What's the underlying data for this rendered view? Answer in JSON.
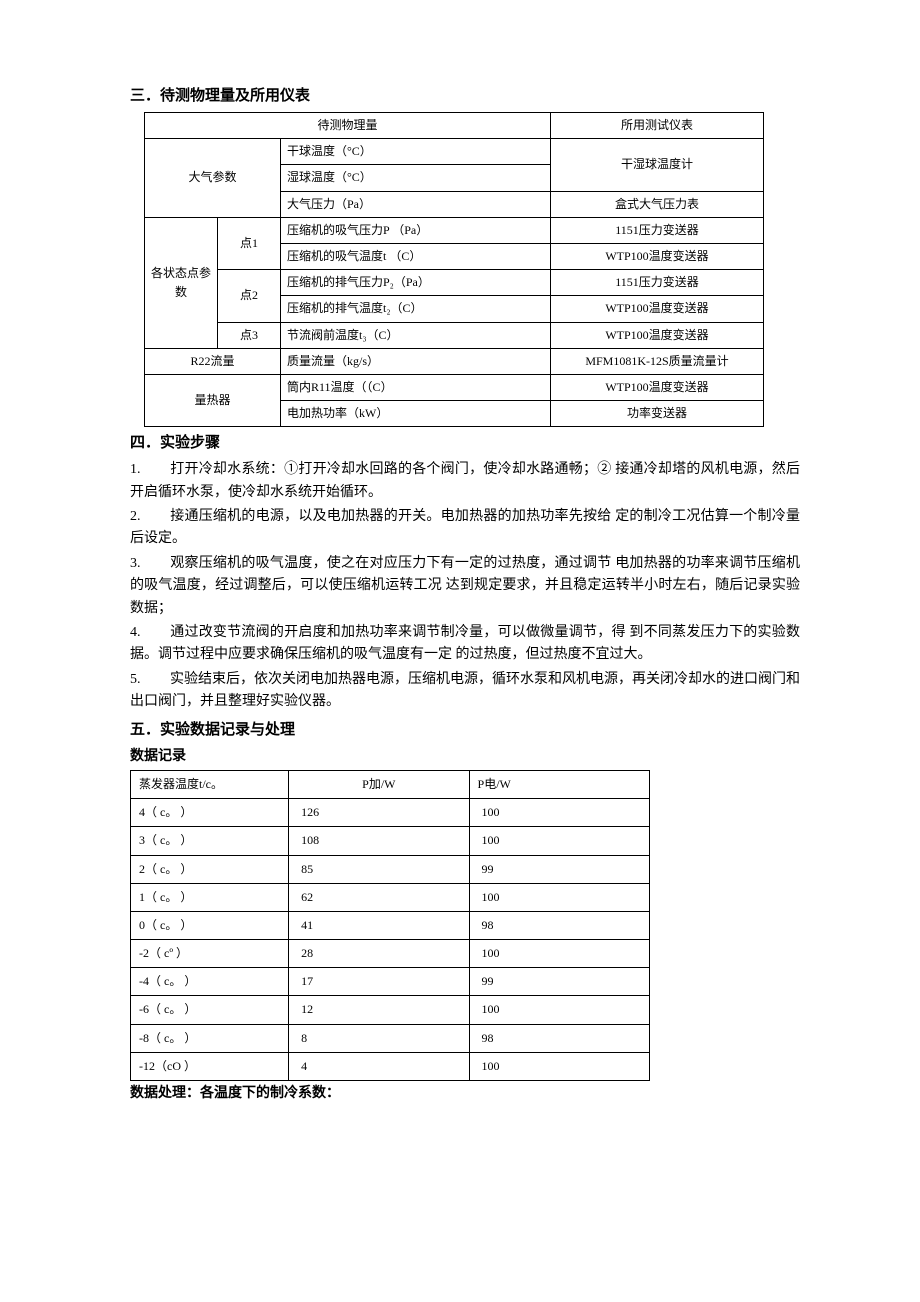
{
  "sec3": {
    "title": "三．待测物理量及所用仪表",
    "table": {
      "header_left": "待测物理量",
      "header_right": "所用测试仪表",
      "atmos": {
        "label": "大气参数",
        "rows": [
          {
            "q": "干球温度（°C）",
            "inst": "干湿球温度计",
            "span": 2
          },
          {
            "q": "湿球温度（°C）"
          },
          {
            "q": "大气压力（Pa）",
            "inst": "盒式大气压力表"
          }
        ]
      },
      "state": {
        "label": "各状态点参数",
        "points": [
          {
            "pt": "点1",
            "rows": [
              {
                "q": "压缩机的吸气压力P （Pa）",
                "inst": "1151压力变送器"
              },
              {
                "q": "压缩机的吸气温度t （C）",
                "inst": "WTP100温度变送器"
              }
            ]
          },
          {
            "pt": "点2",
            "rows": [
              {
                "q": "压缩机的排气压力P₂（Pa）",
                "inst": "1151压力变送器"
              },
              {
                "q": "压缩机的排气温度t₂（C）",
                "inst": "WTP100温度变送器"
              }
            ]
          },
          {
            "pt": "点3",
            "rows": [
              {
                "q": "节流阀前温度t₃（C）",
                "inst": "WTP100温度变送器"
              }
            ]
          }
        ]
      },
      "flow": {
        "label": "R22流量",
        "q": "质量流量（kg/s）",
        "inst": "MFM1081K-12S质量流量计"
      },
      "cal": {
        "label": "量热器",
        "rows": [
          {
            "q": "筒内R11温度（（C）",
            "inst": "WTP100温度变送器"
          },
          {
            "q": "电加热功率（kW）",
            "inst": "功率变送器"
          }
        ]
      }
    }
  },
  "sec4": {
    "title": "四．实验步骤",
    "steps": [
      "打开冷却水系统：①打开冷却水回路的各个阀门，使冷却水路通畅；② 接通冷却塔的风机电源，然后开启循环水泵，使冷却水系统开始循环。",
      "接通压缩机的电源，以及电加热器的开关。电加热器的加热功率先按给 定的制冷工况估算一个制冷量后设定。",
      "观察压缩机的吸气温度，使之在对应压力下有一定的过热度，通过调节 电加热器的功率来调节压缩机的吸气温度，经过调整后，可以使压缩机运转工况 达到规定要求，并且稳定运转半小时左右，随后记录实验数据；",
      "通过改变节流阀的开启度和加热功率来调节制冷量，可以做微量调节，得 到不同蒸发压力下的实验数据。调节过程中应要求确保压缩机的吸气温度有一定 的过热度，但过热度不宜过大。",
      "实验结束后，依次关闭电加热器电源，压缩机电源，循环水泵和风机电源，再关闭冷却水的进口阀门和出口阀门，并且整理好实验仪器。"
    ]
  },
  "sec5": {
    "title": "五．实验数据记录与处理",
    "subtitle": "数据记录",
    "table": {
      "headers": [
        "蒸发器温度t/c。",
        "P加/W",
        "P电/W"
      ],
      "rows": [
        [
          "4（ c。 ）",
          "126",
          "100"
        ],
        [
          "3（ c。 ）",
          "108",
          "100"
        ],
        [
          "2（ c。 ）",
          "85",
          "99"
        ],
        [
          "1（ c。 ）",
          "62",
          "100"
        ],
        [
          "0（ c。 ）",
          "41",
          "98"
        ],
        [
          "-2（ cº ）",
          "28",
          "100"
        ],
        [
          "-4（ c。 ）",
          "17",
          "99"
        ],
        [
          "-6（ c。 ）",
          "12",
          "100"
        ],
        [
          "-8（ c。 ）",
          "8",
          "98"
        ],
        [
          "-12（cO ）",
          "4",
          "100"
        ]
      ]
    },
    "footer": "数据处理：各温度下的制冷系数："
  }
}
